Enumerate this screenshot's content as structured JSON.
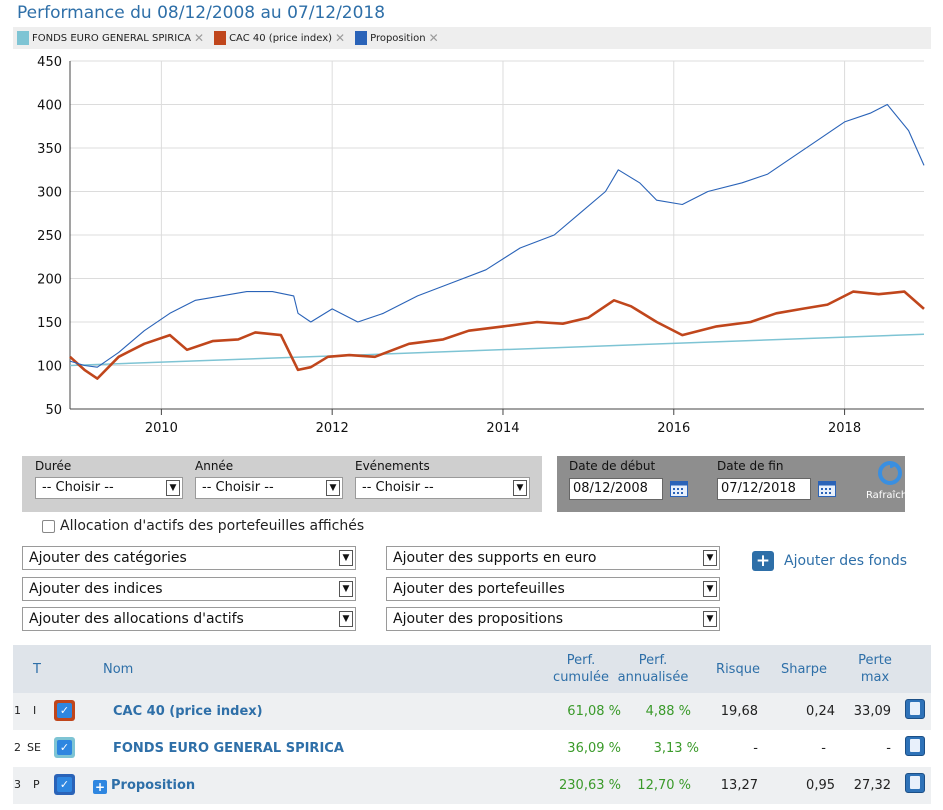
{
  "title": "Performance du 08/12/2008 au 07/12/2018",
  "legend": [
    {
      "name": "FONDS EURO GENERAL SPIRICA",
      "color": "#7ec4d4"
    },
    {
      "name": "CAC 40 (price index)",
      "color": "#c0461c"
    },
    {
      "name": "Proposition",
      "color": "#2a63b8"
    }
  ],
  "legend_remove_icon": "close-icon",
  "chart_data": {
    "type": "line",
    "ylim": [
      50,
      450
    ],
    "yticks": [
      "450",
      "400",
      "350",
      "300",
      "250",
      "200",
      "150",
      "100",
      "50"
    ],
    "xticks": [
      "2010",
      "2012",
      "2014",
      "2016",
      "2018"
    ],
    "xlim": [
      2008.93,
      2018.93
    ],
    "grid": true,
    "series": [
      {
        "name": "FONDS EURO GENERAL SPIRICA",
        "color": "#7ec4d4",
        "x": [
          2008.93,
          2018.93
        ],
        "y": [
          100,
          136
        ]
      },
      {
        "name": "CAC 40 (price index)",
        "color": "#c0461c",
        "x": [
          2008.93,
          2009.1,
          2009.25,
          2009.5,
          2009.8,
          2010.1,
          2010.3,
          2010.6,
          2010.9,
          2011.1,
          2011.4,
          2011.6,
          2011.75,
          2011.95,
          2012.2,
          2012.5,
          2012.9,
          2013.3,
          2013.6,
          2014.0,
          2014.4,
          2014.7,
          2015.0,
          2015.3,
          2015.5,
          2015.8,
          2016.1,
          2016.5,
          2016.9,
          2017.2,
          2017.5,
          2017.8,
          2018.1,
          2018.4,
          2018.7,
          2018.93
        ],
        "y": [
          110,
          95,
          85,
          110,
          125,
          135,
          118,
          128,
          130,
          138,
          135,
          95,
          98,
          110,
          112,
          110,
          125,
          130,
          140,
          145,
          150,
          148,
          155,
          175,
          168,
          150,
          135,
          145,
          150,
          160,
          165,
          170,
          185,
          182,
          185,
          165
        ]
      },
      {
        "name": "Proposition",
        "color": "#2a63b8",
        "x": [
          2008.93,
          2009.1,
          2009.25,
          2009.5,
          2009.8,
          2010.1,
          2010.4,
          2010.7,
          2011.0,
          2011.3,
          2011.55,
          2011.6,
          2011.75,
          2012.0,
          2012.3,
          2012.6,
          2013.0,
          2013.4,
          2013.8,
          2014.2,
          2014.6,
          2014.9,
          2015.2,
          2015.35,
          2015.6,
          2015.8,
          2016.1,
          2016.4,
          2016.8,
          2017.1,
          2017.4,
          2017.7,
          2018.0,
          2018.3,
          2018.5,
          2018.75,
          2018.93
        ],
        "y": [
          105,
          100,
          98,
          115,
          140,
          160,
          175,
          180,
          185,
          185,
          180,
          160,
          150,
          165,
          150,
          160,
          180,
          195,
          210,
          235,
          250,
          275,
          300,
          325,
          310,
          290,
          285,
          300,
          310,
          320,
          340,
          360,
          380,
          390,
          400,
          370,
          330
        ]
      }
    ]
  },
  "filters": {
    "duree": {
      "label": "Durée",
      "value": "-- Choisir --"
    },
    "annee": {
      "label": "Année",
      "value": "-- Choisir --"
    },
    "evenements": {
      "label": "Evénements",
      "value": "-- Choisir --"
    },
    "date_debut": {
      "label": "Date de début",
      "value": "08/12/2008"
    },
    "date_fin": {
      "label": "Date de fin",
      "value": "07/12/2018"
    },
    "refresh_label": "Rafraîchir"
  },
  "allocation_checkbox_label": "Allocation d'actifs des portefeuilles affichés",
  "add_selects": {
    "categories": "Ajouter des catégories",
    "indices": "Ajouter des indices",
    "allocations": "Ajouter des allocations d'actifs",
    "supports_euro": "Ajouter des supports en euro",
    "portefeuilles": "Ajouter des portefeuilles",
    "propositions": "Ajouter des propositions"
  },
  "add_funds_label": "Ajouter des fonds",
  "table": {
    "headers": {
      "t": "T",
      "nom": "Nom",
      "perf_cum_1": "Perf.",
      "perf_cum_2": "cumulée",
      "perf_ann_1": "Perf.",
      "perf_ann_2": "annualisée",
      "risque": "Risque",
      "sharpe": "Sharpe",
      "perte_1": "Perte",
      "perte_2": "max"
    },
    "rows": [
      {
        "index": "1",
        "type": "I",
        "color": "#c0461c",
        "name": "CAC 40 (price index)",
        "perf_cum": "61,08 %",
        "perf_ann": "4,88 %",
        "risque": "19,68",
        "sharpe": "0,24",
        "perte": "33,09"
      },
      {
        "index": "2",
        "type": "SE",
        "color": "#7ec4d4",
        "name": "FONDS EURO GENERAL SPIRICA",
        "perf_cum": "36,09 %",
        "perf_ann": "3,13 %",
        "risque": "-",
        "sharpe": "-",
        "perte": "-"
      },
      {
        "index": "3",
        "type": "P",
        "color": "#2a63b8",
        "name": "Proposition",
        "perf_cum": "230,63 %",
        "perf_ann": "12,70 %",
        "risque": "13,27",
        "sharpe": "0,95",
        "perte": "27,32"
      }
    ]
  }
}
